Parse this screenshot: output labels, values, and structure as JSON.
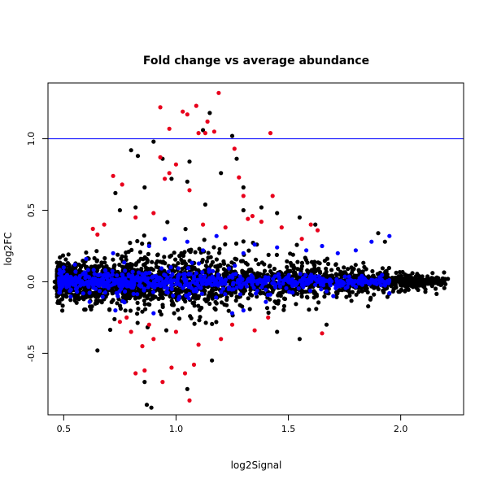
{
  "chart_data": {
    "type": "scatter",
    "title": "Fold change vs average abundance",
    "xlabel": "log2Signal",
    "ylabel": "log2FC",
    "xlim": [
      0.43,
      2.28
    ],
    "ylim": [
      -0.93,
      1.39
    ],
    "x_ticks": [
      0.5,
      1.0,
      1.5,
      2.0
    ],
    "x_tick_labels": [
      "0.5",
      "1.0",
      "1.5",
      "2.0"
    ],
    "y_ticks": [
      -0.5,
      0.0,
      0.5,
      1.0
    ],
    "y_tick_labels": [
      "-0.5",
      "0.0",
      "0.5",
      "1.0"
    ],
    "reference_line": {
      "y": 1.0,
      "color": "#0000ff"
    },
    "grid": false,
    "legend": "none",
    "colors": {
      "black": "#000000",
      "blue": "#0000ff",
      "red": "#e8001c"
    },
    "series": [
      {
        "color": "black",
        "points": [
          [
            0.87,
            -0.86
          ],
          [
            0.89,
            -0.88
          ],
          [
            0.8,
            0.92
          ],
          [
            0.83,
            0.88
          ],
          [
            0.9,
            0.98
          ],
          [
            0.94,
            0.86
          ],
          [
            1.06,
            0.84
          ],
          [
            1.12,
            1.06
          ],
          [
            1.15,
            1.18
          ],
          [
            1.25,
            1.02
          ],
          [
            1.27,
            0.86
          ],
          [
            1.2,
            0.76
          ],
          [
            0.98,
            0.72
          ],
          [
            1.05,
            0.7
          ],
          [
            0.75,
            0.5
          ],
          [
            0.82,
            0.52
          ],
          [
            1.13,
            0.54
          ],
          [
            1.3,
            0.5
          ],
          [
            1.38,
            0.52
          ],
          [
            1.45,
            0.48
          ],
          [
            1.55,
            0.45
          ],
          [
            1.62,
            0.4
          ],
          [
            1.9,
            0.34
          ],
          [
            1.93,
            0.28
          ],
          [
            0.73,
            0.62
          ],
          [
            0.86,
            0.66
          ],
          [
            1.3,
            0.66
          ],
          [
            0.86,
            -0.7
          ],
          [
            1.16,
            -0.55
          ],
          [
            1.05,
            -0.75
          ],
          [
            0.65,
            -0.48
          ],
          [
            1.55,
            -0.4
          ],
          [
            1.45,
            -0.35
          ],
          [
            1.67,
            -0.3
          ],
          [
            2.21,
            0.02
          ],
          [
            2.18,
            0.0
          ],
          [
            2.14,
            -0.03
          ],
          [
            2.1,
            0.01
          ],
          [
            2.05,
            0.02
          ],
          [
            0.46,
            0.0
          ],
          [
            0.47,
            0.04
          ],
          [
            0.46,
            -0.04
          ]
        ],
        "cloud": {
          "x_range": [
            0.47,
            2.2
          ],
          "x_center": 1.0,
          "count": 2600,
          "spread_at_left": 0.16,
          "spread_at_center": 0.3,
          "spread_at_right": 0.05
        }
      },
      {
        "color": "blue",
        "points": [
          [
            1.95,
            0.32
          ],
          [
            1.87,
            0.28
          ],
          [
            1.8,
            0.22
          ],
          [
            1.72,
            0.2
          ],
          [
            1.65,
            0.25
          ],
          [
            1.58,
            0.22
          ],
          [
            1.45,
            0.24
          ],
          [
            1.35,
            0.26
          ],
          [
            1.18,
            0.32
          ],
          [
            1.05,
            0.28
          ],
          [
            0.95,
            0.3
          ],
          [
            0.88,
            0.25
          ],
          [
            0.72,
            0.2
          ],
          [
            0.6,
            0.16
          ],
          [
            1.25,
            -0.22
          ],
          [
            1.3,
            -0.2
          ],
          [
            1.4,
            -0.14
          ],
          [
            1.7,
            -0.1
          ],
          [
            1.95,
            -0.08
          ],
          [
            0.9,
            -0.22
          ],
          [
            0.73,
            -0.2
          ],
          [
            1.12,
            0.22
          ],
          [
            1.3,
            0.2
          ],
          [
            0.55,
            0.12
          ],
          [
            0.5,
            0.1
          ]
        ],
        "cloud": {
          "x_range": [
            0.48,
            1.95
          ],
          "x_center": 0.95,
          "count": 700,
          "spread_at_left": 0.09,
          "spread_at_center": 0.14,
          "spread_at_right": 0.04
        }
      },
      {
        "color": "red",
        "points": [
          [
            0.93,
            1.22
          ],
          [
            0.97,
            1.07
          ],
          [
            1.03,
            1.19
          ],
          [
            1.05,
            1.17
          ],
          [
            1.09,
            1.23
          ],
          [
            1.1,
            1.04
          ],
          [
            1.14,
            1.12
          ],
          [
            1.19,
            1.32
          ],
          [
            1.42,
            1.04
          ],
          [
            1.13,
            1.04
          ],
          [
            1.17,
            1.05
          ],
          [
            1.26,
            0.93
          ],
          [
            1.28,
            0.73
          ],
          [
            1.0,
            0.82
          ],
          [
            0.97,
            0.76
          ],
          [
            0.93,
            0.87
          ],
          [
            0.72,
            0.74
          ],
          [
            0.76,
            0.68
          ],
          [
            0.95,
            0.72
          ],
          [
            1.06,
            0.64
          ],
          [
            1.3,
            0.6
          ],
          [
            1.43,
            0.6
          ],
          [
            1.34,
            0.46
          ],
          [
            1.38,
            0.42
          ],
          [
            1.47,
            0.38
          ],
          [
            1.6,
            0.4
          ],
          [
            1.63,
            0.36
          ],
          [
            1.56,
            0.3
          ],
          [
            0.63,
            0.37
          ],
          [
            0.65,
            0.33
          ],
          [
            0.68,
            0.4
          ],
          [
            0.82,
            0.45
          ],
          [
            0.9,
            0.48
          ],
          [
            1.12,
            0.4
          ],
          [
            1.22,
            0.38
          ],
          [
            1.32,
            0.44
          ],
          [
            0.8,
            -0.35
          ],
          [
            0.75,
            -0.28
          ],
          [
            0.82,
            -0.64
          ],
          [
            0.86,
            -0.62
          ],
          [
            0.94,
            -0.7
          ],
          [
            0.98,
            -0.6
          ],
          [
            1.04,
            -0.64
          ],
          [
            1.06,
            -0.83
          ],
          [
            1.08,
            -0.58
          ],
          [
            0.85,
            -0.45
          ],
          [
            0.9,
            -0.4
          ],
          [
            1.0,
            -0.35
          ],
          [
            1.1,
            -0.44
          ],
          [
            1.2,
            -0.4
          ],
          [
            1.25,
            -0.3
          ],
          [
            1.35,
            -0.34
          ],
          [
            1.41,
            -0.25
          ],
          [
            1.65,
            -0.36
          ],
          [
            0.78,
            -0.25
          ],
          [
            0.88,
            -0.3
          ]
        ]
      }
    ]
  }
}
